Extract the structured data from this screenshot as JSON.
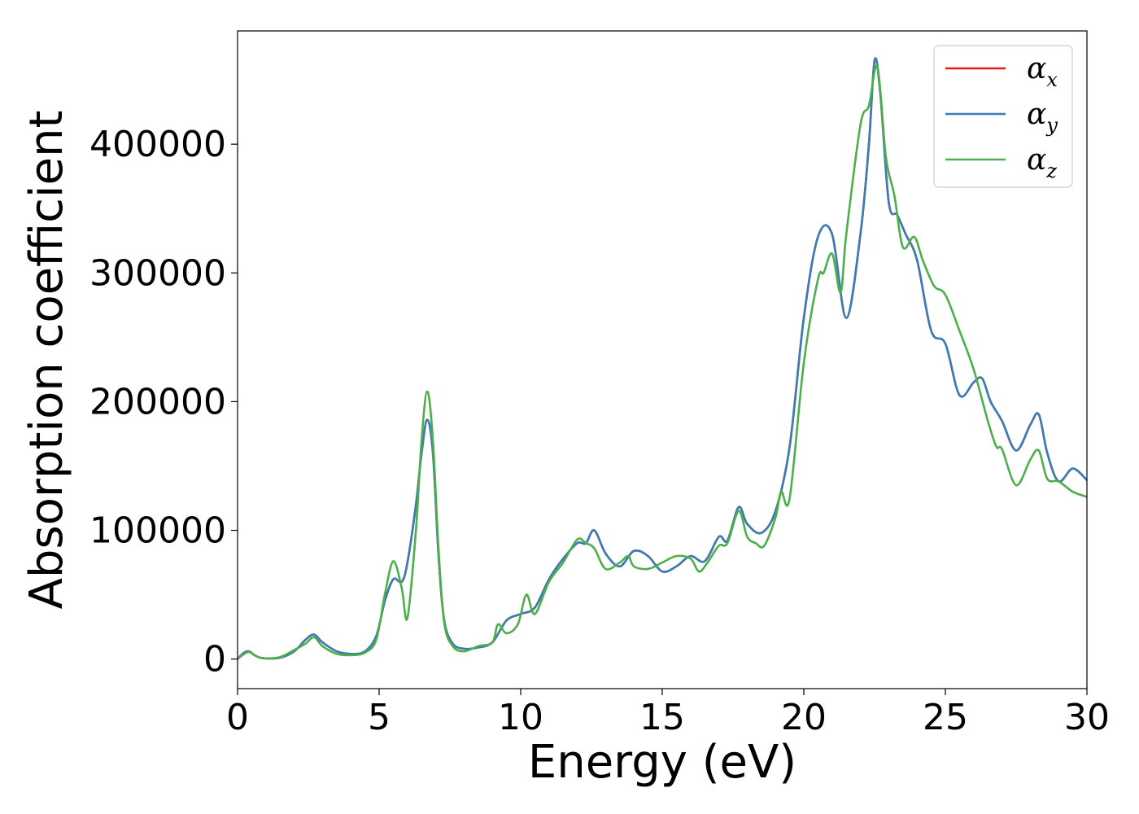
{
  "chart_data": {
    "type": "line",
    "xlabel": "Energy (eV)",
    "ylabel": "Absorption coefficient",
    "xlim": [
      0,
      30
    ],
    "ylim": [
      -23000,
      488000
    ],
    "xticks": [
      0,
      5,
      10,
      15,
      20,
      25,
      30
    ],
    "yticks": [
      0,
      100000,
      200000,
      300000,
      400000
    ],
    "grid": false,
    "legend_position": "top-right",
    "series": [
      {
        "name": "α",
        "subscript": "x",
        "color": "#e41a1c",
        "x": [
          0,
          0.2,
          0.4,
          0.6,
          0.8,
          1,
          1.5,
          2,
          2.4,
          2.7,
          3,
          3.5,
          4,
          4.5,
          4.9,
          5.2,
          5.5,
          5.8,
          6,
          6.3,
          6.5,
          6.7,
          6.9,
          7.1,
          7.3,
          7.6,
          8,
          8.5,
          9,
          9.5,
          10,
          10.5,
          11,
          11.5,
          12,
          12.3,
          12.6,
          13,
          13.5,
          14,
          14.5,
          15,
          15.5,
          16,
          16.5,
          17,
          17.3,
          17.7,
          18,
          18.5,
          19,
          19.5,
          20,
          20.5,
          21,
          21.5,
          22,
          22.3,
          22.5,
          22.7,
          23,
          23.3,
          23.6,
          24,
          24.5,
          25,
          25.5,
          26,
          26.3,
          26.6,
          27,
          27.5,
          28,
          28.3,
          28.6,
          29,
          29.5,
          30
        ],
        "values": [
          0,
          4500,
          6000,
          3000,
          1000,
          500,
          1000,
          6000,
          15000,
          19000,
          13000,
          6000,
          4000,
          6000,
          18000,
          45000,
          62000,
          60000,
          75000,
          120000,
          160000,
          186000,
          160000,
          80000,
          30000,
          12000,
          8000,
          9000,
          13000,
          30000,
          35000,
          40000,
          62000,
          78000,
          90000,
          90000,
          100000,
          82000,
          72000,
          84000,
          80000,
          68000,
          72000,
          80000,
          76000,
          95000,
          92000,
          118000,
          105000,
          98000,
          115000,
          165000,
          265000,
          328000,
          330000,
          265000,
          330000,
          400000,
          465000,
          440000,
          355000,
          345000,
          330000,
          310000,
          255000,
          245000,
          205000,
          215000,
          218000,
          200000,
          185000,
          162000,
          182000,
          190000,
          160000,
          138000,
          148000,
          139000
        ]
      },
      {
        "name": "α",
        "subscript": "y",
        "color": "#377eb8",
        "x": [
          0,
          0.2,
          0.4,
          0.6,
          0.8,
          1,
          1.5,
          2,
          2.4,
          2.7,
          3,
          3.5,
          4,
          4.5,
          4.9,
          5.2,
          5.5,
          5.8,
          6,
          6.3,
          6.5,
          6.7,
          6.9,
          7.1,
          7.3,
          7.6,
          8,
          8.5,
          9,
          9.5,
          10,
          10.5,
          11,
          11.5,
          12,
          12.3,
          12.6,
          13,
          13.5,
          14,
          14.5,
          15,
          15.5,
          16,
          16.5,
          17,
          17.3,
          17.7,
          18,
          18.5,
          19,
          19.5,
          20,
          20.5,
          21,
          21.5,
          22,
          22.3,
          22.5,
          22.7,
          23,
          23.3,
          23.6,
          24,
          24.5,
          25,
          25.5,
          26,
          26.3,
          26.6,
          27,
          27.5,
          28,
          28.3,
          28.6,
          29,
          29.5,
          30
        ],
        "values": [
          0,
          4500,
          6000,
          3000,
          1000,
          500,
          1000,
          6000,
          15000,
          19000,
          13000,
          6000,
          4000,
          6000,
          18000,
          45000,
          62000,
          60000,
          75000,
          120000,
          160000,
          186000,
          160000,
          80000,
          30000,
          12000,
          8000,
          9000,
          13000,
          30000,
          35000,
          40000,
          62000,
          78000,
          90000,
          90000,
          100000,
          82000,
          72000,
          84000,
          80000,
          68000,
          72000,
          80000,
          76000,
          95000,
          92000,
          118000,
          105000,
          98000,
          115000,
          165000,
          265000,
          328000,
          330000,
          265000,
          330000,
          400000,
          465000,
          440000,
          355000,
          345000,
          330000,
          310000,
          255000,
          245000,
          205000,
          215000,
          218000,
          200000,
          185000,
          162000,
          182000,
          190000,
          160000,
          138000,
          148000,
          139000
        ]
      },
      {
        "name": "α",
        "subscript": "z",
        "color": "#4daf4a",
        "x": [
          0,
          0.2,
          0.4,
          0.6,
          0.8,
          1,
          1.5,
          2,
          2.4,
          2.7,
          3,
          3.5,
          4,
          4.5,
          4.9,
          5.2,
          5.5,
          5.8,
          6,
          6.3,
          6.5,
          6.7,
          6.9,
          7.1,
          7.3,
          7.6,
          8,
          8.5,
          9,
          9.2,
          9.5,
          9.9,
          10.2,
          10.5,
          11,
          11.5,
          12,
          12.3,
          12.6,
          13,
          13.5,
          13.8,
          14,
          14.5,
          15,
          15.5,
          16,
          16.3,
          16.6,
          17,
          17.3,
          17.7,
          18,
          18.3,
          18.6,
          19,
          19.2,
          19.5,
          20,
          20.5,
          20.7,
          21,
          21.3,
          21.5,
          22,
          22.3,
          22.6,
          22.9,
          23.2,
          23.5,
          23.9,
          24.2,
          24.6,
          25,
          25.5,
          26,
          26.5,
          26.8,
          27,
          27.5,
          28,
          28.3,
          28.6,
          29,
          29.5,
          30
        ],
        "values": [
          0,
          3500,
          5500,
          3000,
          1000,
          500,
          1500,
          7000,
          12000,
          17000,
          10000,
          4000,
          3000,
          5000,
          15000,
          50000,
          76000,
          55000,
          32000,
          100000,
          170000,
          208000,
          170000,
          85000,
          28000,
          10000,
          6000,
          10000,
          13000,
          27000,
          20000,
          27000,
          50000,
          35000,
          60000,
          75000,
          93000,
          90000,
          86000,
          70000,
          75000,
          80000,
          72000,
          70000,
          75000,
          80000,
          78000,
          68000,
          75000,
          88000,
          90000,
          115000,
          95000,
          90000,
          88000,
          110000,
          130000,
          125000,
          230000,
          295000,
          300000,
          315000,
          285000,
          330000,
          415000,
          430000,
          460000,
          390000,
          360000,
          320000,
          328000,
          310000,
          290000,
          283000,
          255000,
          225000,
          185000,
          165000,
          163000,
          135000,
          155000,
          162000,
          140000,
          138000,
          130000,
          126000
        ]
      }
    ]
  }
}
